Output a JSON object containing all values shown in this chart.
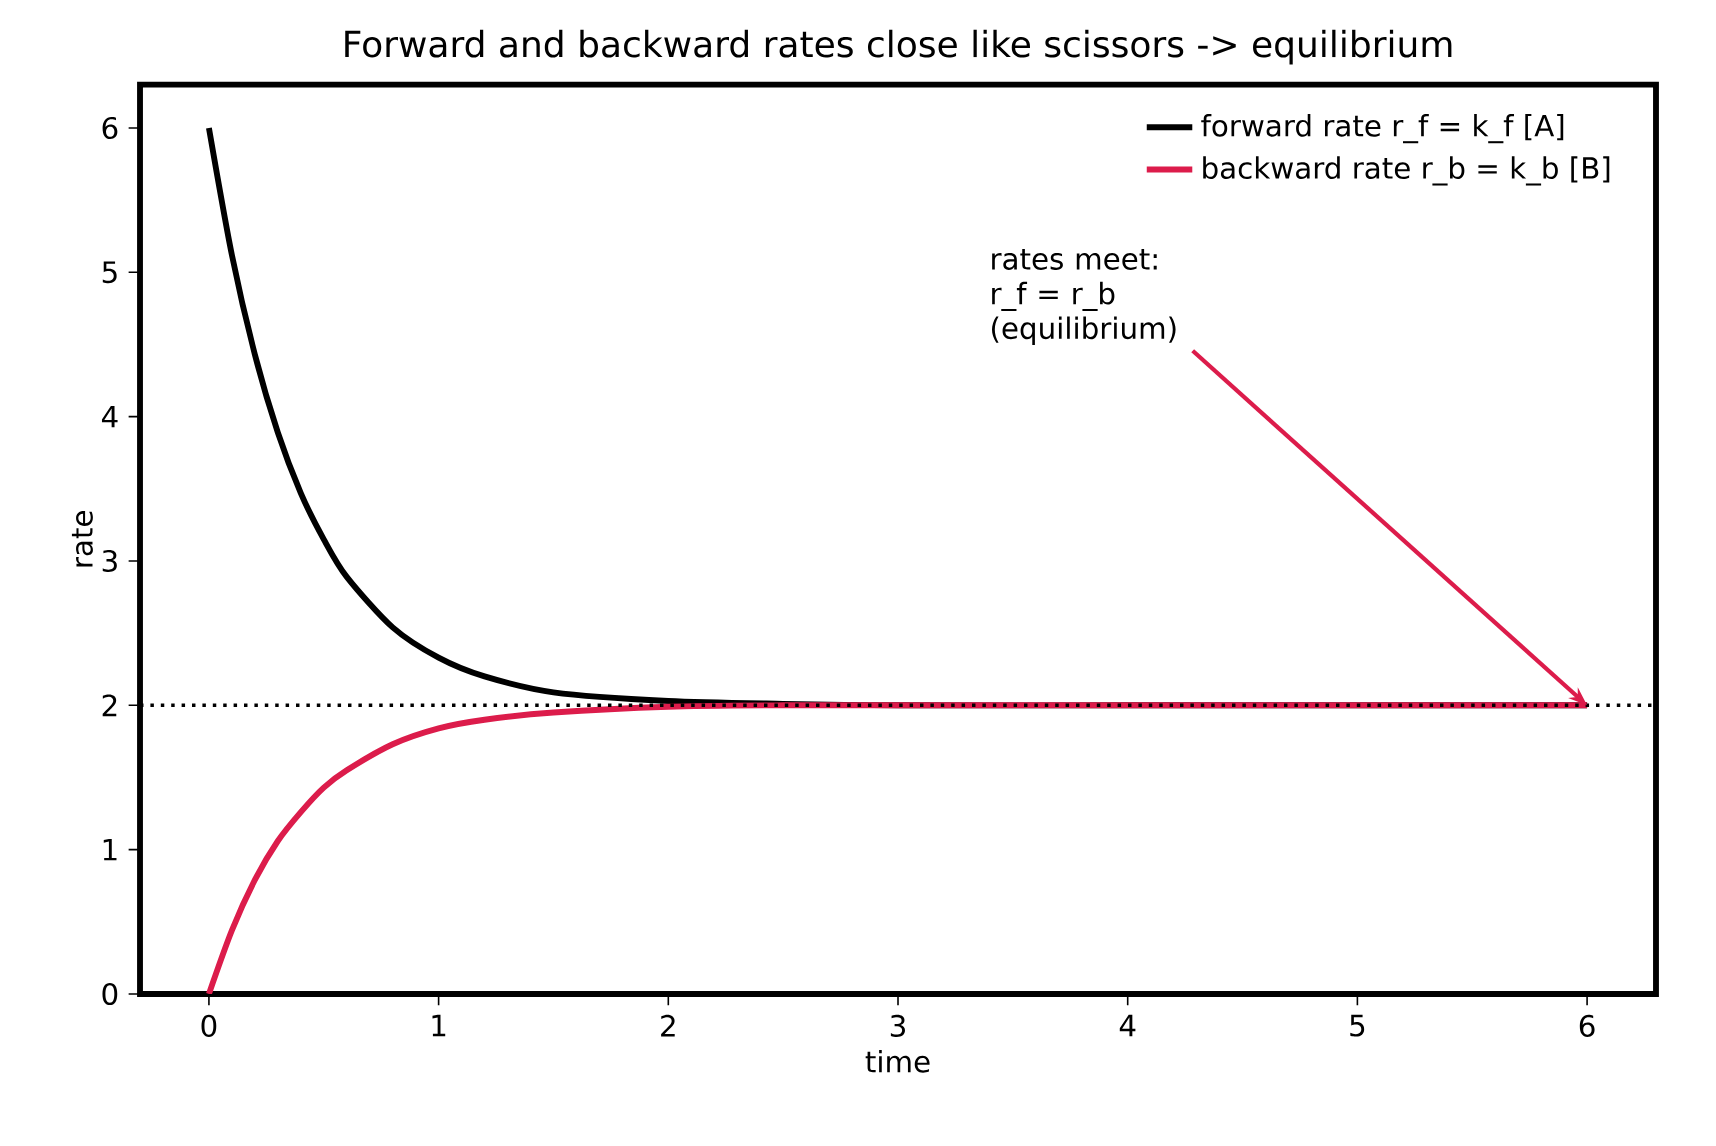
{
  "chart_data": {
    "type": "line",
    "title": "Forward and backward rates close like scissors -> equilibrium",
    "xlabel": "time",
    "ylabel": "rate",
    "x": [
      0,
      0.1,
      0.2,
      0.3,
      0.4,
      0.5,
      0.6,
      0.8,
      1.0,
      1.2,
      1.5,
      2,
      2.5,
      3,
      4,
      5,
      6
    ],
    "series": [
      {
        "name": "forward rate  r_f = k_f [A]",
        "color": "#000000",
        "values": [
          6,
          5.12,
          4.43,
          3.89,
          3.47,
          3.15,
          2.89,
          2.54,
          2.33,
          2.2,
          2.09,
          2.03,
          2.01,
          2.0,
          2.0,
          2.0,
          2.0
        ]
      },
      {
        "name": "backward rate  r_b = k_b [B]",
        "color": "#dc1c4b",
        "values": [
          0,
          0.44,
          0.79,
          1.06,
          1.26,
          1.43,
          1.55,
          1.73,
          1.84,
          1.9,
          1.95,
          1.99,
          2.0,
          2.0,
          2.0,
          2.0,
          2.0
        ]
      }
    ],
    "xlim": [
      -0.3,
      6.3
    ],
    "ylim": [
      0,
      6.3
    ],
    "xticks": [
      0,
      1,
      2,
      3,
      4,
      5,
      6
    ],
    "yticks": [
      0,
      1,
      2,
      3,
      4,
      5,
      6
    ],
    "ref_lines": [
      {
        "axis": "y",
        "value": 2,
        "color": "#000000",
        "line_style": "dotted"
      }
    ],
    "annotations": [
      {
        "text": "rates meet: r_f = r_b (equilibrium)",
        "x": 6,
        "y": 2
      }
    ],
    "legend": "top right",
    "grid": false
  }
}
